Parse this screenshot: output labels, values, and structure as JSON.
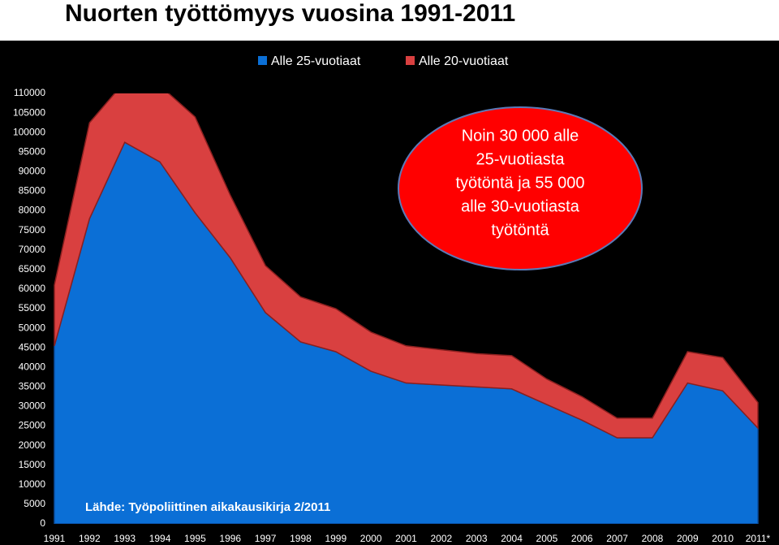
{
  "chart_data": {
    "type": "stacked_area",
    "title": "Nuorten työttömyys vuosina 1991-2011",
    "categories": [
      "1991",
      "1992",
      "1993",
      "1994",
      "1995",
      "1996",
      "1997",
      "1998",
      "1999",
      "2000",
      "2001",
      "2002",
      "2003",
      "2004",
      "2005",
      "2006",
      "2007",
      "2008",
      "2009",
      "2010",
      "2011*"
    ],
    "series": [
      {
        "name": "Alle 25-vuotiaat",
        "color": "#0b6fd6",
        "values": [
          45500,
          78000,
          97500,
          92500,
          79500,
          68000,
          54000,
          46500,
          44000,
          39000,
          36000,
          35500,
          35000,
          34500,
          30500,
          26500,
          22000,
          22000,
          36000,
          34000,
          24500
        ]
      },
      {
        "name": "Alle 20-vuotiaat",
        "color": "#d94040",
        "values": [
          15500,
          24500,
          15500,
          19500,
          24500,
          16000,
          12000,
          11500,
          11000,
          10000,
          9500,
          9000,
          8500,
          8500,
          6500,
          6000,
          5000,
          5000,
          8000,
          8500,
          6500
        ]
      }
    ],
    "ylim": [
      0,
      110000
    ],
    "yticks": [
      0,
      5000,
      10000,
      15000,
      20000,
      25000,
      30000,
      35000,
      40000,
      45000,
      50000,
      55000,
      60000,
      65000,
      70000,
      75000,
      80000,
      85000,
      90000,
      95000,
      100000,
      105000,
      110000
    ],
    "annotation": [
      "Noin 30 000  alle",
      "25-vuotiasta",
      "työtöntä ja 55 000",
      "alle 30-vuotiasta",
      "työtöntä"
    ],
    "source": "Lähde: Työpoliittinen aikakausikirja 2/2011"
  }
}
